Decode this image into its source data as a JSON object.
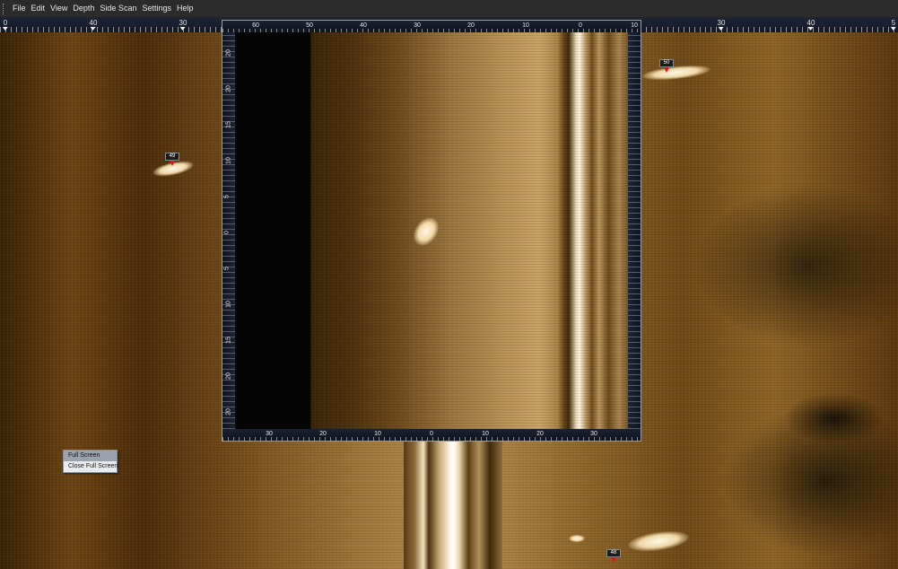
{
  "menubar": {
    "items": [
      "File",
      "Edit",
      "View",
      "Depth",
      "Side Scan",
      "Settings",
      "Help"
    ]
  },
  "top_ruler": {
    "labels": [
      "0",
      "40",
      "30",
      "30",
      "40",
      "5"
    ]
  },
  "popup": {
    "top_labels": [
      "60",
      "50",
      "40",
      "30",
      "20",
      "10",
      "0",
      "10"
    ],
    "bottom_labels": [
      "30",
      "20",
      "10",
      "0",
      "10",
      "20",
      "30"
    ],
    "left_labels": [
      "20",
      "20",
      "15",
      "10",
      "5",
      "0",
      "5",
      "10",
      "15",
      "20",
      "20"
    ]
  },
  "markers": [
    {
      "number": "49"
    },
    {
      "number": "50"
    },
    {
      "number": "48"
    }
  ],
  "context_menu": {
    "items": [
      "Full Screen",
      "Close Full Screen"
    ],
    "selected": "Full Screen"
  },
  "colors": {
    "sonar_amber": "#a47b3f",
    "marker_red": "#e11111",
    "menubar_bg": "#2b2b2b",
    "ruler_bg": "#161c2b"
  }
}
